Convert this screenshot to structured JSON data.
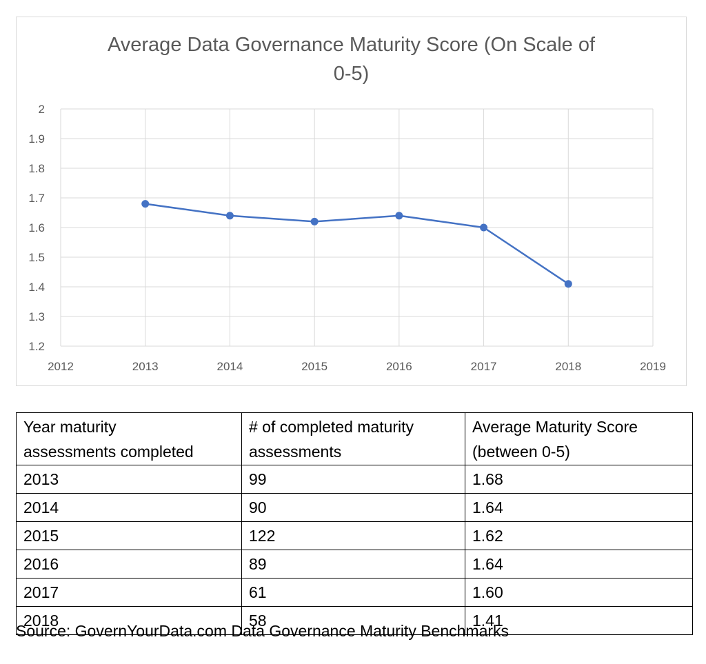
{
  "chart_data": {
    "type": "line",
    "title_lines": [
      "Average Data Governance Maturity Score (On Scale of",
      "0-5)"
    ],
    "xlabel": "",
    "ylabel": "",
    "xlim": [
      2012,
      2019
    ],
    "ylim": [
      1.2,
      2.0
    ],
    "x_ticks": [
      2012,
      2013,
      2014,
      2015,
      2016,
      2017,
      2018,
      2019
    ],
    "y_ticks": [
      1.2,
      1.3,
      1.4,
      1.5,
      1.6,
      1.7,
      1.8,
      1.9,
      2.0
    ],
    "y_tick_labels": [
      "1.2",
      "1.3",
      "1.4",
      "1.5",
      "1.6",
      "1.7",
      "1.8",
      "1.9",
      "2"
    ],
    "grid": true,
    "legend": "none",
    "series": [
      {
        "color": "#4472c4",
        "x": [
          2013,
          2014,
          2015,
          2016,
          2017,
          2018
        ],
        "y": [
          1.68,
          1.64,
          1.62,
          1.64,
          1.6,
          1.41
        ]
      }
    ]
  },
  "table": {
    "headers": [
      [
        "Year maturity",
        "assessments completed"
      ],
      [
        "# of completed maturity",
        "assessments"
      ],
      [
        "Average Maturity Score",
        "(between 0-5)"
      ]
    ],
    "rows": [
      [
        "2013",
        "99",
        "1.68"
      ],
      [
        "2014",
        "90",
        "1.64"
      ],
      [
        "2015",
        "122",
        "1.62"
      ],
      [
        "2016",
        "89",
        "1.64"
      ],
      [
        "2017",
        "61",
        "1.60"
      ],
      [
        "2018",
        "58",
        "1.41"
      ]
    ]
  },
  "source": "Source: GovernYourData.com Data Governance Maturity Benchmarks"
}
